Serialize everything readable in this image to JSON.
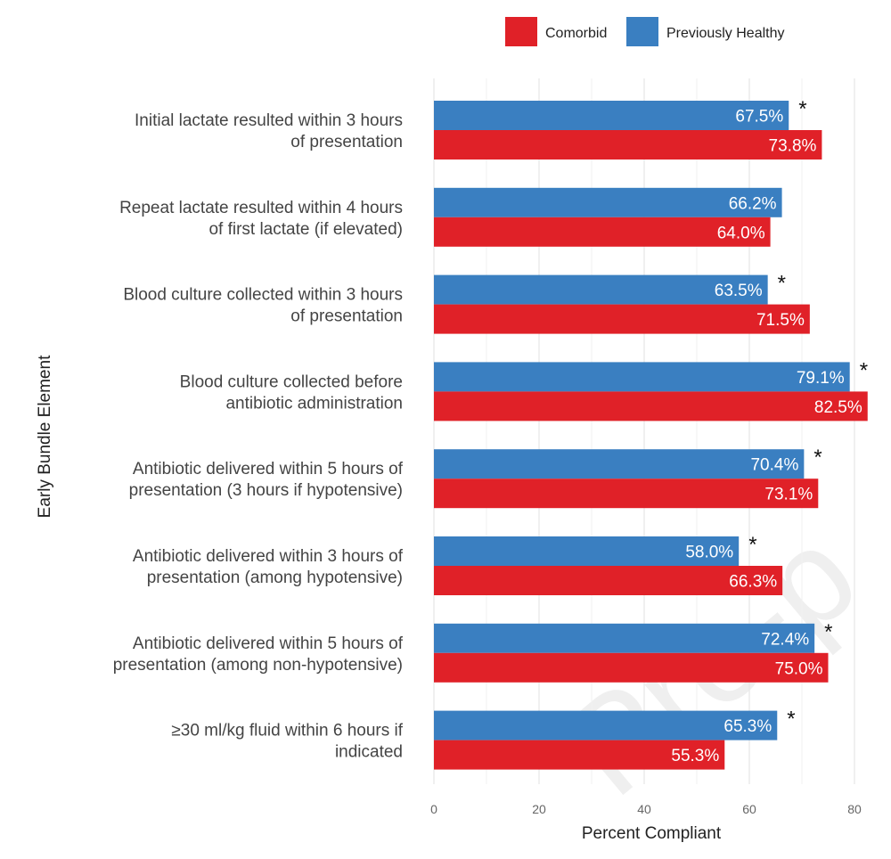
{
  "chart_data": {
    "type": "bar",
    "orientation": "horizontal",
    "xlabel": "Percent Compliant",
    "ylabel": "Early Bundle Element",
    "xlim": [
      0,
      85
    ],
    "xticks": [
      0,
      20,
      40,
      60,
      80
    ],
    "legend_position": "top-right",
    "categories": [
      [
        "Initial lactate resulted within 3 hours",
        "of presentation"
      ],
      [
        "Repeat lactate resulted within 4 hours",
        "of first lactate (if elevated)"
      ],
      [
        "Blood culture collected within 3 hours",
        "of presentation"
      ],
      [
        "Blood culture collected before",
        "antibiotic administration"
      ],
      [
        "Antibiotic delivered within 5 hours of",
        "presentation (3 hours if hypotensive)"
      ],
      [
        "Antibiotic delivered within 3 hours of",
        "presentation (among hypotensive)"
      ],
      [
        "Antibiotic delivered within 5 hours of",
        "presentation (among non-hypotensive)"
      ],
      [
        "≥30 ml/kg fluid within 6 hours if",
        "indicated"
      ]
    ],
    "series": [
      {
        "name": "Previously Healthy",
        "color": "#3a7fc1",
        "values": [
          67.5,
          66.2,
          63.5,
          79.1,
          70.4,
          58.0,
          72.4,
          65.3
        ],
        "labels": [
          "67.5%",
          "66.2%",
          "63.5%",
          "79.1%",
          "70.4%",
          "58.0%",
          "72.4%",
          "65.3%"
        ]
      },
      {
        "name": "Comorbid",
        "color": "#e02128",
        "values": [
          73.8,
          64.0,
          71.5,
          82.5,
          73.1,
          66.3,
          75.0,
          55.3
        ],
        "labels": [
          "73.8%",
          "64.0%",
          "71.5%",
          "82.5%",
          "73.1%",
          "66.3%",
          "75.0%",
          "55.3%"
        ]
      }
    ],
    "significance_marker": "*",
    "significant": [
      true,
      false,
      true,
      true,
      true,
      true,
      true,
      true
    ],
    "legend": [
      "Comorbid",
      "Previously Healthy"
    ],
    "watermark": "Pre-p"
  }
}
